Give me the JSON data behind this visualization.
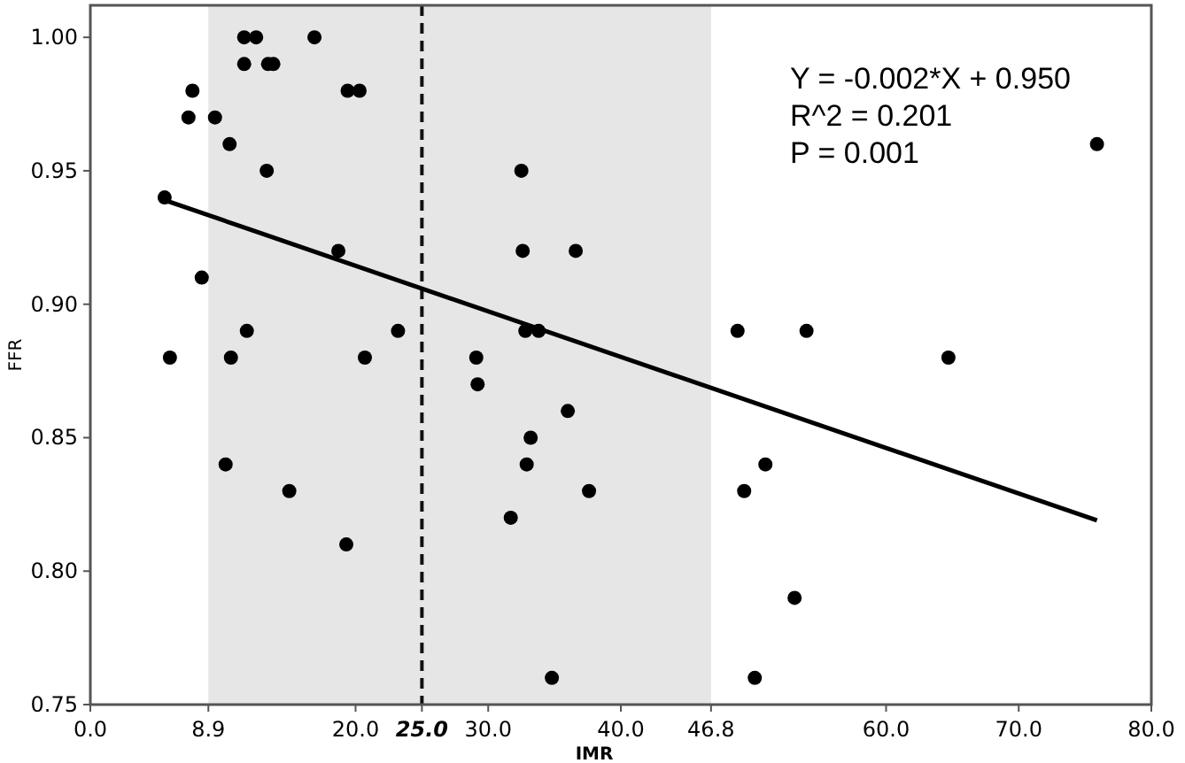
{
  "chart_data": {
    "type": "scatter",
    "xlabel": "IMR",
    "ylabel": "FFR",
    "xlim": [
      0,
      80
    ],
    "ylim": [
      0.75,
      1.012
    ],
    "xticks": [
      {
        "value": 0,
        "label": "0.0"
      },
      {
        "value": 8.9,
        "label": "8.9"
      },
      {
        "value": 20,
        "label": "20.0"
      },
      {
        "value": 30,
        "label": "30.0"
      },
      {
        "value": 40,
        "label": "40.0"
      },
      {
        "value": 46.8,
        "label": "46.8"
      },
      {
        "value": 60,
        "label": "60.0"
      },
      {
        "value": 70,
        "label": "70.0"
      },
      {
        "value": 80,
        "label": "80.0"
      }
    ],
    "yticks": [
      {
        "value": 0.75,
        "label": "0.75"
      },
      {
        "value": 0.8,
        "label": "0.80"
      },
      {
        "value": 0.85,
        "label": "0.85"
      },
      {
        "value": 0.9,
        "label": "0.90"
      },
      {
        "value": 0.95,
        "label": "0.95"
      },
      {
        "value": 1.0,
        "label": "1.00"
      }
    ],
    "grid": false,
    "marker": "circle",
    "bands": [
      {
        "axis": "x",
        "from": 8.9,
        "to": 46.8,
        "color": "#e6e6e6"
      }
    ],
    "ref_lines": [
      {
        "axis": "x",
        "value": 25.0,
        "label": "25.0",
        "color": "#111111",
        "line_style": "dashed"
      }
    ],
    "annotations": [
      "Y = -0.002*X + 0.950",
      "R^2 = 0.201",
      "P = 0.001"
    ],
    "series": [
      {
        "color": "#000000",
        "x": [
          5.6,
          6.0,
          7.4,
          7.7,
          8.4,
          9.4,
          10.2,
          10.5,
          10.6,
          11.6,
          11.6,
          11.8,
          12.5,
          13.3,
          13.4,
          13.8,
          15.0,
          16.9,
          18.7,
          19.3,
          19.4,
          20.3,
          20.7,
          23.2,
          29.1,
          29.2,
          31.7,
          32.5,
          32.6,
          32.8,
          32.9,
          33.2,
          33.8,
          34.8,
          36.0,
          36.6,
          37.6,
          48.8,
          49.3,
          50.1,
          50.9,
          53.1,
          54.0,
          64.7,
          75.9
        ],
        "values": [
          0.94,
          0.88,
          0.97,
          0.98,
          0.91,
          0.97,
          0.84,
          0.96,
          0.88,
          1.0,
          0.99,
          0.89,
          1.0,
          0.95,
          0.99,
          0.99,
          0.83,
          1.0,
          0.92,
          0.81,
          0.98,
          0.98,
          0.88,
          0.89,
          0.88,
          0.87,
          0.82,
          0.95,
          0.92,
          0.89,
          0.84,
          0.85,
          0.89,
          0.76,
          0.86,
          0.92,
          0.83,
          0.89,
          0.83,
          0.76,
          0.84,
          0.79,
          0.89,
          0.88,
          0.96
        ]
      },
      {
        "type": "line",
        "marker": "none",
        "color": "#000000",
        "x": [
          5.6,
          75.9
        ],
        "values": [
          0.939,
          0.819
        ]
      }
    ]
  }
}
